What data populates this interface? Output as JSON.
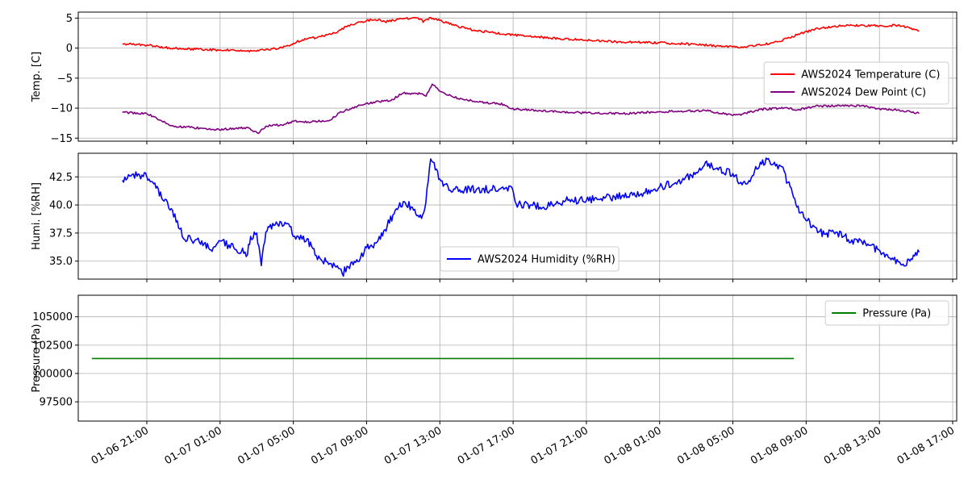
{
  "chart_data": [
    {
      "type": "line",
      "ylabel": "Temp. [C]",
      "ylim": [
        -15.5,
        6
      ],
      "yticks": [
        -15,
        -10,
        -5,
        0,
        5
      ],
      "grid": true,
      "legend_position": "right",
      "series": [
        {
          "name": "AWS2024 Temperature (C)",
          "color": "#ff0000",
          "points": [
            [
              "2024-01-06 19:40",
              0.7
            ],
            [
              "2024-01-06 21:00",
              0.5
            ],
            [
              "2024-01-06 22:00",
              0.1
            ],
            [
              "2024-01-06 23:00",
              -0.1
            ],
            [
              "2024-01-07 00:00",
              -0.2
            ],
            [
              "2024-01-07 01:00",
              -0.3
            ],
            [
              "2024-01-07 02:00",
              -0.4
            ],
            [
              "2024-01-07 03:00",
              -0.5
            ],
            [
              "2024-01-07 03:10",
              -0.3
            ],
            [
              "2024-01-07 04:00",
              -0.1
            ],
            [
              "2024-01-07 04:45",
              0.4
            ],
            [
              "2024-01-07 05:00",
              0.8
            ],
            [
              "2024-01-07 05:30",
              1.4
            ],
            [
              "2024-01-07 06:30",
              1.9
            ],
            [
              "2024-01-07 07:15",
              2.5
            ],
            [
              "2024-01-07 08:00",
              3.8
            ],
            [
              "2024-01-07 09:00",
              4.6
            ],
            [
              "2024-01-07 09:40",
              4.8
            ],
            [
              "2024-01-07 10:00",
              4.4
            ],
            [
              "2024-01-07 11:00",
              4.9
            ],
            [
              "2024-01-07 11:40",
              5.1
            ],
            [
              "2024-01-07 12:00",
              4.8
            ],
            [
              "2024-01-07 12:05",
              4.3
            ],
            [
              "2024-01-07 12:30",
              5.1
            ],
            [
              "2024-01-07 13:00",
              4.6
            ],
            [
              "2024-01-07 14:00",
              3.6
            ],
            [
              "2024-01-07 15:00",
              2.9
            ],
            [
              "2024-01-07 17:00",
              2.2
            ],
            [
              "2024-01-07 19:00",
              1.7
            ],
            [
              "2024-01-07 21:00",
              1.3
            ],
            [
              "2024-01-07 23:00",
              1.0
            ],
            [
              "2024-01-08 01:00",
              0.9
            ],
            [
              "2024-01-08 03:00",
              0.6
            ],
            [
              "2024-01-08 05:00",
              0.2
            ],
            [
              "2024-01-08 05:40",
              0.2
            ],
            [
              "2024-01-08 06:30",
              0.5
            ],
            [
              "2024-01-08 07:30",
              1.1
            ],
            [
              "2024-01-08 08:30",
              2.2
            ],
            [
              "2024-01-08 09:30",
              3.2
            ],
            [
              "2024-01-08 10:30",
              3.6
            ],
            [
              "2024-01-08 11:30",
              3.8
            ],
            [
              "2024-01-08 13:00",
              3.7
            ],
            [
              "2024-01-08 14:00",
              3.8
            ],
            [
              "2024-01-08 14:40",
              3.3
            ],
            [
              "2024-01-08 15:10",
              2.8
            ]
          ]
        },
        {
          "name": "AWS2024 Dew Point (C)",
          "color": "#800080",
          "points": [
            [
              "2024-01-06 19:40",
              -10.7
            ],
            [
              "2024-01-06 21:00",
              -10.9
            ],
            [
              "2024-01-06 21:45",
              -12.0
            ],
            [
              "2024-01-06 22:30",
              -13.1
            ],
            [
              "2024-01-06 23:30",
              -13.2
            ],
            [
              "2024-01-07 00:30",
              -13.6
            ],
            [
              "2024-01-07 01:30",
              -13.5
            ],
            [
              "2024-01-07 02:30",
              -13.2
            ],
            [
              "2024-01-07 03:05",
              -14.2
            ],
            [
              "2024-01-07 03:30",
              -13.0
            ],
            [
              "2024-01-07 04:30",
              -12.7
            ],
            [
              "2024-01-07 05:00",
              -12.2
            ],
            [
              "2024-01-07 06:00",
              -12.3
            ],
            [
              "2024-01-07 07:00",
              -12.0
            ],
            [
              "2024-01-07 07:30",
              -10.8
            ],
            [
              "2024-01-07 08:30",
              -9.7
            ],
            [
              "2024-01-07 09:30",
              -8.9
            ],
            [
              "2024-01-07 10:15",
              -8.8
            ],
            [
              "2024-01-07 11:00",
              -7.5
            ],
            [
              "2024-01-07 12:00",
              -7.6
            ],
            [
              "2024-01-07 12:15",
              -8.0
            ],
            [
              "2024-01-07 12:35",
              -6.0
            ],
            [
              "2024-01-07 13:00",
              -7.2
            ],
            [
              "2024-01-07 14:00",
              -8.4
            ],
            [
              "2024-01-07 15:00",
              -8.9
            ],
            [
              "2024-01-07 16:30",
              -9.4
            ],
            [
              "2024-01-07 16:55",
              -10.1
            ],
            [
              "2024-01-07 19:00",
              -10.5
            ],
            [
              "2024-01-07 21:00",
              -10.8
            ],
            [
              "2024-01-07 23:00",
              -10.9
            ],
            [
              "2024-01-08 01:00",
              -10.6
            ],
            [
              "2024-01-08 02:00",
              -10.5
            ],
            [
              "2024-01-08 03:30",
              -10.4
            ],
            [
              "2024-01-08 05:00",
              -11.2
            ],
            [
              "2024-01-08 05:30",
              -11.0
            ],
            [
              "2024-01-08 06:30",
              -10.2
            ],
            [
              "2024-01-08 08:00",
              -10.0
            ],
            [
              "2024-01-08 08:30",
              -10.3
            ],
            [
              "2024-01-08 09:30",
              -9.7
            ],
            [
              "2024-01-08 11:00",
              -9.5
            ],
            [
              "2024-01-08 12:00",
              -9.6
            ],
            [
              "2024-01-08 13:00",
              -10.1
            ],
            [
              "2024-01-08 14:00",
              -10.3
            ],
            [
              "2024-01-08 15:10",
              -10.9
            ]
          ]
        }
      ]
    },
    {
      "type": "line",
      "ylabel": "Humi. [%RH]",
      "ylim": [
        33.4,
        44.6
      ],
      "yticks": [
        35.0,
        37.5,
        40.0,
        42.5
      ],
      "grid": true,
      "legend_position": "lower center",
      "series": [
        {
          "name": "AWS2024 Humidity (%RH)",
          "color": "#0000ff",
          "points": [
            [
              "2024-01-06 19:40",
              42.2
            ],
            [
              "2024-01-06 20:00",
              42.7
            ],
            [
              "2024-01-06 21:00",
              42.5
            ],
            [
              "2024-01-06 21:30",
              41.5
            ],
            [
              "2024-01-06 22:00",
              40.5
            ],
            [
              "2024-01-06 22:40",
              38.6
            ],
            [
              "2024-01-06 23:00",
              37.0
            ],
            [
              "2024-01-07 00:00",
              36.8
            ],
            [
              "2024-01-07 00:30",
              36.0
            ],
            [
              "2024-01-07 01:00",
              36.8
            ],
            [
              "2024-01-07 01:45",
              36.2
            ],
            [
              "2024-01-07 02:30",
              35.6
            ],
            [
              "2024-01-07 02:40",
              37.2
            ],
            [
              "2024-01-07 03:00",
              37.5
            ],
            [
              "2024-01-07 03:15",
              34.6
            ],
            [
              "2024-01-07 03:30",
              37.6
            ],
            [
              "2024-01-07 04:00",
              38.2
            ],
            [
              "2024-01-07 04:45",
              38.3
            ],
            [
              "2024-01-07 05:00",
              37.2
            ],
            [
              "2024-01-07 05:45",
              37.0
            ],
            [
              "2024-01-07 06:15",
              35.5
            ],
            [
              "2024-01-07 07:00",
              34.8
            ],
            [
              "2024-01-07 07:40",
              33.9
            ],
            [
              "2024-01-07 08:00",
              34.5
            ],
            [
              "2024-01-07 08:40",
              35.3
            ],
            [
              "2024-01-07 09:00",
              36.2
            ],
            [
              "2024-01-07 09:30",
              36.6
            ],
            [
              "2024-01-07 10:00",
              37.8
            ],
            [
              "2024-01-07 10:30",
              39.2
            ],
            [
              "2024-01-07 11:00",
              40.3
            ],
            [
              "2024-01-07 11:30",
              39.8
            ],
            [
              "2024-01-07 12:00",
              38.8
            ],
            [
              "2024-01-07 12:10",
              39.6
            ],
            [
              "2024-01-07 12:30",
              44.1
            ],
            [
              "2024-01-07 13:00",
              42.3
            ],
            [
              "2024-01-07 13:30",
              41.3
            ],
            [
              "2024-01-07 15:00",
              41.4
            ],
            [
              "2024-01-07 16:30",
              41.4
            ],
            [
              "2024-01-07 16:55",
              41.6
            ],
            [
              "2024-01-07 17:10",
              40.1
            ],
            [
              "2024-01-07 18:00",
              40.0
            ],
            [
              "2024-01-07 19:00",
              39.9
            ],
            [
              "2024-01-07 20:00",
              40.4
            ],
            [
              "2024-01-07 22:00",
              40.6
            ],
            [
              "2024-01-08 00:00",
              41.0
            ],
            [
              "2024-01-08 01:00",
              41.6
            ],
            [
              "2024-01-08 02:00",
              42.1
            ],
            [
              "2024-01-08 03:00",
              42.9
            ],
            [
              "2024-01-08 03:30",
              43.8
            ],
            [
              "2024-01-08 04:00",
              43.2
            ],
            [
              "2024-01-08 05:00",
              42.8
            ],
            [
              "2024-01-08 05:30",
              41.8
            ],
            [
              "2024-01-08 06:00",
              42.4
            ],
            [
              "2024-01-08 06:30",
              43.8
            ],
            [
              "2024-01-08 07:00",
              43.9
            ],
            [
              "2024-01-08 07:40",
              43.4
            ],
            [
              "2024-01-08 08:00",
              42.0
            ],
            [
              "2024-01-08 08:30",
              39.8
            ],
            [
              "2024-01-08 09:00",
              38.6
            ],
            [
              "2024-01-08 09:30",
              38.0
            ],
            [
              "2024-01-08 10:00",
              37.4
            ],
            [
              "2024-01-08 10:30",
              37.6
            ],
            [
              "2024-01-08 11:30",
              36.9
            ],
            [
              "2024-01-08 12:30",
              36.4
            ],
            [
              "2024-01-08 13:30",
              35.3
            ],
            [
              "2024-01-08 14:10",
              34.7
            ],
            [
              "2024-01-08 14:40",
              35.0
            ],
            [
              "2024-01-08 15:10",
              35.8
            ]
          ]
        }
      ]
    },
    {
      "type": "line",
      "ylabel": "Pressure (Pa)",
      "ylim": [
        95800,
        106900
      ],
      "yticks": [
        97500,
        100000,
        102500,
        105000
      ],
      "grid": true,
      "legend_position": "upper right",
      "series": [
        {
          "name": "Pressure (Pa)",
          "color": "#008000",
          "points": [
            [
              "2024-01-06 18:00",
              101325
            ],
            [
              "2024-01-08 08:20",
              101325
            ]
          ]
        }
      ]
    }
  ],
  "x_axis": {
    "tick_labels": [
      "01-06 21:00",
      "01-07 01:00",
      "01-07 05:00",
      "01-07 09:00",
      "01-07 13:00",
      "01-07 17:00",
      "01-07 21:00",
      "01-08 01:00",
      "01-08 05:00",
      "01-08 09:00",
      "01-08 13:00",
      "01-08 17:00"
    ]
  }
}
